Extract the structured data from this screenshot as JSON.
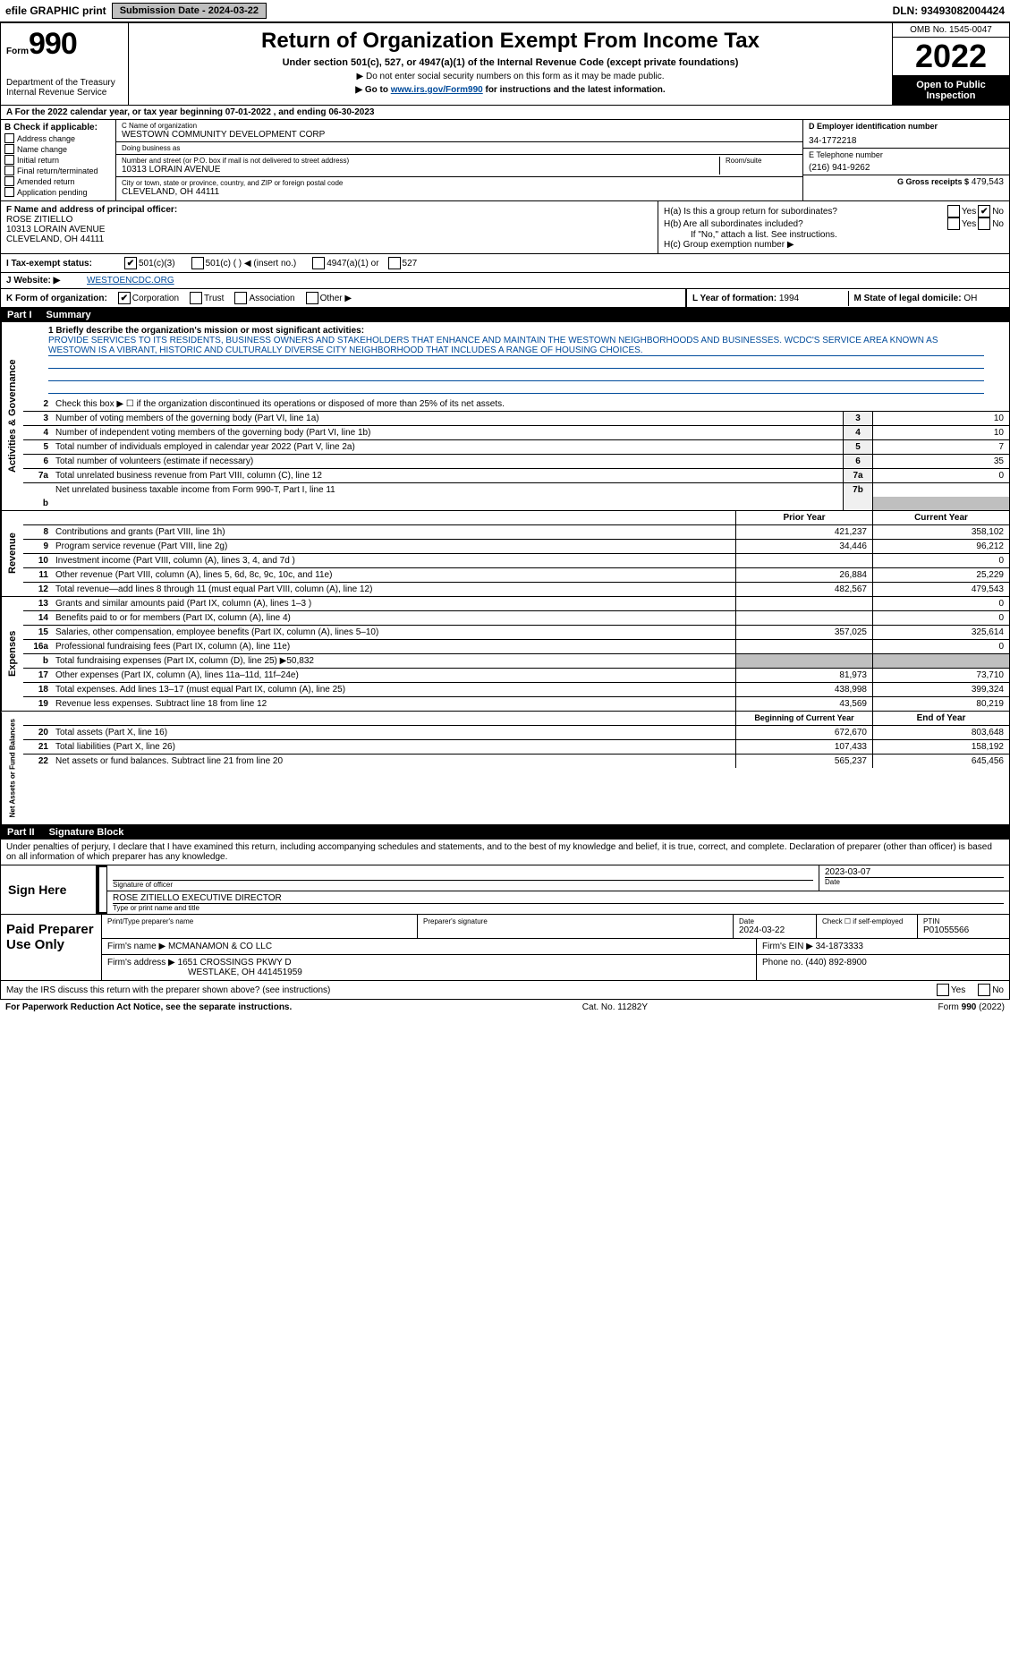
{
  "top_bar": {
    "efile_label": "efile GRAPHIC print",
    "submission_label": "Submission Date - 2024-03-22",
    "dln": "DLN: 93493082004424"
  },
  "header": {
    "form_label": "Form",
    "form_number": "990",
    "dept": "Department of the Treasury",
    "irs": "Internal Revenue Service",
    "title": "Return of Organization Exempt From Income Tax",
    "subtitle": "Under section 501(c), 527, or 4947(a)(1) of the Internal Revenue Code (except private foundations)",
    "note1": "▶ Do not enter social security numbers on this form as it may be made public.",
    "note2_pre": "▶ Go to ",
    "note2_link": "www.irs.gov/Form990",
    "note2_post": " for instructions and the latest information.",
    "omb": "OMB No. 1545-0047",
    "year": "2022",
    "open_public": "Open to Public Inspection"
  },
  "row_a": "A For the 2022 calendar year, or tax year beginning 07-01-2022    , and ending 06-30-2023",
  "col_b": {
    "header": "B Check if applicable:",
    "items": [
      "Address change",
      "Name change",
      "Initial return",
      "Final return/terminated",
      "Amended return",
      "Application pending"
    ]
  },
  "col_c": {
    "name_lbl": "C Name of organization",
    "name": "WESTOWN COMMUNITY DEVELOPMENT CORP",
    "dba_lbl": "Doing business as",
    "dba": "",
    "addr_lbl": "Number and street (or P.O. box if mail is not delivered to street address)",
    "room_lbl": "Room/suite",
    "addr": "10313 LORAIN AVENUE",
    "city_lbl": "City or town, state or province, country, and ZIP or foreign postal code",
    "city": "CLEVELAND, OH  44111"
  },
  "col_d": {
    "ein_lbl": "D Employer identification number",
    "ein": "34-1772218",
    "phone_lbl": "E Telephone number",
    "phone": "(216) 941-9262",
    "gross_lbl": "G Gross receipts $",
    "gross": "479,543"
  },
  "f": {
    "lbl": "F Name and address of principal officer:",
    "name": "ROSE ZITIELLO",
    "addr1": "10313 LORAIN AVENUE",
    "addr2": "CLEVELAND, OH  44111"
  },
  "h": {
    "a_lbl": "H(a)  Is this a group return for subordinates?",
    "b_lbl": "H(b)  Are all subordinates included?",
    "b_note": "If \"No,\" attach a list. See instructions.",
    "c_lbl": "H(c)  Group exemption number ▶",
    "yes": "Yes",
    "no": "No"
  },
  "row_i": {
    "lbl": "I   Tax-exempt status:",
    "o1": "501(c)(3)",
    "o2": "501(c) (  ) ◀ (insert no.)",
    "o3": "4947(a)(1) or",
    "o4": "527"
  },
  "row_j": {
    "lbl": "J   Website: ▶",
    "val": "WESTOENCDC.ORG"
  },
  "row_k": {
    "lbl": "K Form of organization:",
    "o1": "Corporation",
    "o2": "Trust",
    "o3": "Association",
    "o4": "Other ▶"
  },
  "row_lm": {
    "l_lbl": "L Year of formation:",
    "l_val": "1994",
    "m_lbl": "M State of legal domicile:",
    "m_val": "OH"
  },
  "part1": {
    "hdr_part": "Part I",
    "hdr_title": "Summary",
    "q1_lbl": "1  Briefly describe the organization's mission or most significant activities:",
    "q1_text": "PROVIDE SERVICES TO ITS RESIDENTS, BUSINESS OWNERS AND STAKEHOLDERS THAT ENHANCE AND MAINTAIN THE WESTOWN NEIGHBORHOODS AND BUSINESSES. WCDC'S SERVICE AREA KNOWN AS WESTOWN IS A VIBRANT, HISTORIC AND CULTURALLY DIVERSE CITY NEIGHBORHOOD THAT INCLUDES A RANGE OF HOUSING CHOICES.",
    "q2": "Check this box ▶ ☐  if the organization discontinued its operations or disposed of more than 25% of its net assets.",
    "tab_activities": "Activities & Governance",
    "tab_revenue": "Revenue",
    "tab_expenses": "Expenses",
    "tab_net": "Net Assets or Fund Balances",
    "rows_ag": [
      {
        "n": "3",
        "d": "Number of voting members of the governing body (Part VI, line 1a)",
        "rn": "3",
        "v": "10"
      },
      {
        "n": "4",
        "d": "Number of independent voting members of the governing body (Part VI, line 1b)",
        "rn": "4",
        "v": "10"
      },
      {
        "n": "5",
        "d": "Total number of individuals employed in calendar year 2022 (Part V, line 2a)",
        "rn": "5",
        "v": "7"
      },
      {
        "n": "6",
        "d": "Total number of volunteers (estimate if necessary)",
        "rn": "6",
        "v": "35"
      },
      {
        "n": "7a",
        "d": "Total unrelated business revenue from Part VIII, column (C), line 12",
        "rn": "7a",
        "v": "0"
      },
      {
        "n": "",
        "d": "Net unrelated business taxable income from Form 990-T, Part I, line 11",
        "rn": "7b",
        "v": ""
      }
    ],
    "col_prior": "Prior Year",
    "col_current": "Current Year",
    "rows_rev": [
      {
        "n": "8",
        "d": "Contributions and grants (Part VIII, line 1h)",
        "p": "421,237",
        "c": "358,102"
      },
      {
        "n": "9",
        "d": "Program service revenue (Part VIII, line 2g)",
        "p": "34,446",
        "c": "96,212"
      },
      {
        "n": "10",
        "d": "Investment income (Part VIII, column (A), lines 3, 4, and 7d )",
        "p": "",
        "c": "0"
      },
      {
        "n": "11",
        "d": "Other revenue (Part VIII, column (A), lines 5, 6d, 8c, 9c, 10c, and 11e)",
        "p": "26,884",
        "c": "25,229"
      },
      {
        "n": "12",
        "d": "Total revenue—add lines 8 through 11 (must equal Part VIII, column (A), line 12)",
        "p": "482,567",
        "c": "479,543"
      }
    ],
    "rows_exp": [
      {
        "n": "13",
        "d": "Grants and similar amounts paid (Part IX, column (A), lines 1–3 )",
        "p": "",
        "c": "0"
      },
      {
        "n": "14",
        "d": "Benefits paid to or for members (Part IX, column (A), line 4)",
        "p": "",
        "c": "0"
      },
      {
        "n": "15",
        "d": "Salaries, other compensation, employee benefits (Part IX, column (A), lines 5–10)",
        "p": "357,025",
        "c": "325,614"
      },
      {
        "n": "16a",
        "d": "Professional fundraising fees (Part IX, column (A), line 11e)",
        "p": "",
        "c": "0"
      },
      {
        "n": "b",
        "d": "Total fundraising expenses (Part IX, column (D), line 25) ▶50,832",
        "p": "grey",
        "c": "grey"
      },
      {
        "n": "17",
        "d": "Other expenses (Part IX, column (A), lines 11a–11d, 11f–24e)",
        "p": "81,973",
        "c": "73,710"
      },
      {
        "n": "18",
        "d": "Total expenses. Add lines 13–17 (must equal Part IX, column (A), line 25)",
        "p": "438,998",
        "c": "399,324"
      },
      {
        "n": "19",
        "d": "Revenue less expenses. Subtract line 18 from line 12",
        "p": "43,569",
        "c": "80,219"
      }
    ],
    "col_begin": "Beginning of Current Year",
    "col_end": "End of Year",
    "rows_net": [
      {
        "n": "20",
        "d": "Total assets (Part X, line 16)",
        "p": "672,670",
        "c": "803,648"
      },
      {
        "n": "21",
        "d": "Total liabilities (Part X, line 26)",
        "p": "107,433",
        "c": "158,192"
      },
      {
        "n": "22",
        "d": "Net assets or fund balances. Subtract line 21 from line 20",
        "p": "565,237",
        "c": "645,456"
      }
    ]
  },
  "part2": {
    "hdr_part": "Part II",
    "hdr_title": "Signature Block",
    "penalty": "Under penalties of perjury, I declare that I have examined this return, including accompanying schedules and statements, and to the best of my knowledge and belief, it is true, correct, and complete. Declaration of preparer (other than officer) is based on all information of which preparer has any knowledge.",
    "sign_here": "Sign Here",
    "sig_lbl": "Signature of officer",
    "date_lbl": "Date",
    "date": "2023-03-07",
    "name_title": "ROSE ZITIELLO  EXECUTIVE DIRECTOR",
    "type_lbl": "Type or print name and title",
    "paid_hdr": "Paid Preparer Use Only",
    "prep_name_lbl": "Print/Type preparer's name",
    "prep_sig_lbl": "Preparer's signature",
    "prep_date_lbl": "Date",
    "prep_date": "2024-03-22",
    "check_self": "Check ☐ if self-employed",
    "ptin_lbl": "PTIN",
    "ptin": "P01055566",
    "firm_name_lbl": "Firm's name    ▶",
    "firm_name": "MCMANAMON & CO LLC",
    "firm_ein_lbl": "Firm's EIN ▶",
    "firm_ein": "34-1873333",
    "firm_addr_lbl": "Firm's address ▶",
    "firm_addr1": "1651 CROSSINGS PKWY D",
    "firm_addr2": "WESTLAKE, OH  441451959",
    "firm_phone_lbl": "Phone no.",
    "firm_phone": "(440) 892-8900",
    "discuss": "May the IRS discuss this return with the preparer shown above? (see instructions)",
    "footer_left": "For Paperwork Reduction Act Notice, see the separate instructions.",
    "footer_mid": "Cat. No. 11282Y",
    "footer_right": "Form 990 (2022)"
  },
  "colors": {
    "link": "#004b9b",
    "grey_btn": "#bfbfbf",
    "grey_cell": "#bfbfbf"
  }
}
